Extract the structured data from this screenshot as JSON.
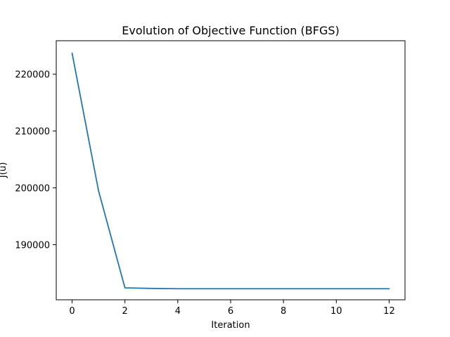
{
  "chart_data": {
    "type": "line",
    "title": "Evolution of Objective Function (BFGS)",
    "xlabel": "Iteration",
    "ylabel": "J(u)",
    "xlim": [
      -0.6,
      12.6
    ],
    "ylim": [
      180300,
      225900
    ],
    "xticks": [
      0,
      2,
      4,
      6,
      8,
      10,
      12
    ],
    "yticks": [
      190000,
      200000,
      210000,
      220000
    ],
    "grid": false,
    "legend": "none",
    "series": [
      {
        "color": "#1f77b4",
        "x": [
          0,
          1,
          2,
          3,
          4,
          5,
          6,
          7,
          8,
          9,
          10,
          11,
          12
        ],
        "y": [
          223700,
          199500,
          182400,
          182300,
          182250,
          182250,
          182250,
          182250,
          182250,
          182250,
          182250,
          182250,
          182250
        ]
      }
    ]
  }
}
